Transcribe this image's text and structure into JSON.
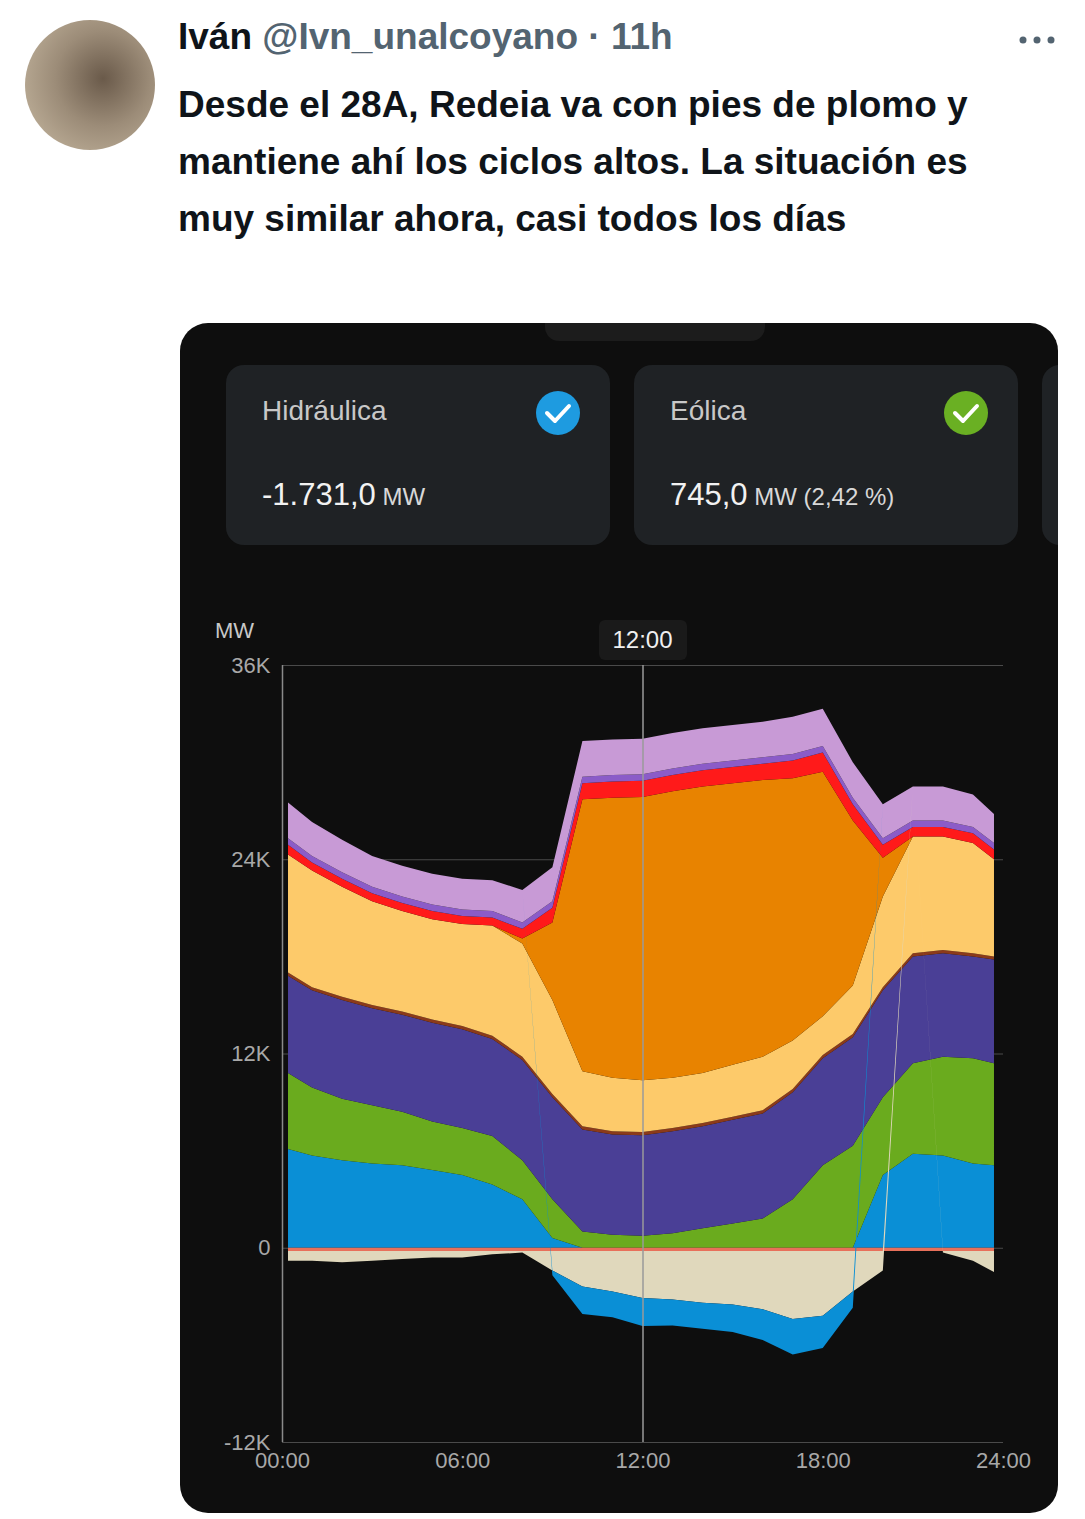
{
  "tweet": {
    "author": "Iván",
    "handle": "@Ivn_unalcoyano",
    "meta": "· 11h",
    "text": "Desde el 28A, Redeia va con pies de plomo y mantiene ahí los ciclos altos. La situación es muy similar ahora, casi todos los días"
  },
  "cards": [
    {
      "label": "Hidráulica",
      "value": "-1.731,0",
      "unit": "MW"
    },
    {
      "label": "Eólica",
      "value": "745,0",
      "unit": "MW",
      "share": "(2,42 %)"
    }
  ],
  "chart_data": {
    "type": "area",
    "stacked": true,
    "ylabel": "MW",
    "grid": true,
    "cursor": {
      "x": 12,
      "label": "12:00"
    },
    "x": [
      0.2,
      1,
      2,
      3,
      4,
      5,
      6,
      7,
      8,
      9,
      10,
      11,
      12,
      13,
      14,
      15,
      16,
      17,
      18,
      19,
      20,
      21,
      22,
      23,
      23.7
    ],
    "xlim": [
      0,
      24
    ],
    "xticks": [
      {
        "value": 0,
        "label": "00:00"
      },
      {
        "value": 6,
        "label": "06:00"
      },
      {
        "value": 12,
        "label": "12:00"
      },
      {
        "value": 18,
        "label": "18:00"
      },
      {
        "value": 24,
        "label": "24:00"
      }
    ],
    "ylim": [
      -12000,
      36000
    ],
    "yticks": [
      {
        "value": -12000,
        "label": "-12K"
      },
      0,
      {
        "value": 12000,
        "label": "12K"
      },
      {
        "value": 24000,
        "label": "24K"
      },
      {
        "value": 36000,
        "label": "36K"
      }
    ],
    "series": [
      {
        "color": "#0a8fd6",
        "values": [
          6100,
          5700,
          5400,
          5200,
          5100,
          4800,
          4500,
          3900,
          3000,
          600,
          0,
          0,
          0,
          0,
          0,
          0,
          0,
          0,
          0,
          0,
          4500,
          5800,
          5700,
          5200,
          5100
        ]
      },
      {
        "color": "#6aab1e",
        "values": [
          4700,
          4200,
          3800,
          3600,
          3300,
          3000,
          2900,
          3000,
          2400,
          2400,
          1000,
          800,
          745,
          900,
          1200,
          1500,
          1800,
          3000,
          5100,
          6300,
          4800,
          5600,
          6100,
          6500,
          6300
        ]
      },
      {
        "color": "#4a3f96",
        "values": [
          6000,
          6000,
          6100,
          6000,
          6000,
          6100,
          6100,
          6000,
          6200,
          6300,
          6300,
          6200,
          6200,
          6300,
          6300,
          6400,
          6500,
          6600,
          6600,
          6700,
          6600,
          6600,
          6400,
          6300,
          6400
        ]
      },
      {
        "color": "#8b3a1a",
        "values": [
          200,
          200,
          200,
          200,
          200,
          200,
          200,
          200,
          200,
          200,
          200,
          200,
          200,
          200,
          200,
          200,
          200,
          200,
          200,
          200,
          200,
          200,
          200,
          200,
          200
        ]
      },
      {
        "color": "#fdca6a",
        "values": [
          7300,
          7200,
          6800,
          6400,
          6200,
          6200,
          6300,
          6800,
          7000,
          5800,
          3400,
          3300,
          3200,
          3100,
          3100,
          3200,
          3300,
          3000,
          2400,
          3000,
          5600,
          7200,
          7000,
          6800,
          6000
        ]
      },
      {
        "color": "#e88300",
        "values": [
          0,
          0,
          0,
          0,
          0,
          0,
          0,
          0,
          300,
          4800,
          16800,
          17300,
          17500,
          17700,
          17700,
          17400,
          17100,
          16200,
          15100,
          10200,
          2400,
          0,
          0,
          0,
          0
        ]
      },
      {
        "color": "#ff1a1a",
        "values": [
          600,
          500,
          500,
          500,
          500,
          500,
          500,
          500,
          600,
          900,
          1000,
          1000,
          1000,
          1000,
          1000,
          1000,
          1000,
          1100,
          1200,
          1000,
          800,
          600,
          600,
          600,
          600
        ]
      },
      {
        "color": "#8b5cc8",
        "values": [
          400,
          400,
          400,
          400,
          400,
          400,
          400,
          400,
          400,
          400,
          400,
          400,
          400,
          400,
          400,
          400,
          400,
          400,
          400,
          400,
          400,
          400,
          400,
          400,
          400
        ]
      },
      {
        "color": "#c89ad6",
        "values": [
          2200,
          2100,
          2000,
          1900,
          1900,
          1900,
          1900,
          1900,
          2000,
          2100,
          2200,
          2200,
          2200,
          2200,
          2200,
          2200,
          2200,
          2300,
          2300,
          2200,
          2100,
          2100,
          2100,
          2000,
          1800
        ]
      },
      {
        "color": "#e8705a",
        "values": [
          -200,
          -200,
          -200,
          -200,
          -200,
          -200,
          -200,
          -200,
          -200,
          -200,
          -200,
          -200,
          -200,
          -200,
          -200,
          -200,
          -200,
          -200,
          -200,
          -200,
          -200,
          -200,
          -200,
          -200,
          -200
        ]
      },
      {
        "color": "#e0d8bc",
        "values": [
          -600,
          -600,
          -700,
          -600,
          -500,
          -400,
          -400,
          -200,
          -100,
          -1200,
          -2200,
          -2500,
          -2900,
          -3000,
          -3200,
          -3300,
          -3600,
          -4200,
          -4000,
          -2500,
          -1200,
          0,
          -100,
          -600,
          -1300
        ]
      },
      {
        "color": "#0a8fd6",
        "values": [
          0,
          0,
          0,
          0,
          0,
          0,
          0,
          0,
          0,
          -300,
          -1700,
          -1600,
          -1731,
          -1600,
          -1600,
          -1700,
          -1900,
          -2200,
          -2000,
          -1000,
          0,
          0,
          0,
          0,
          0
        ]
      }
    ]
  }
}
